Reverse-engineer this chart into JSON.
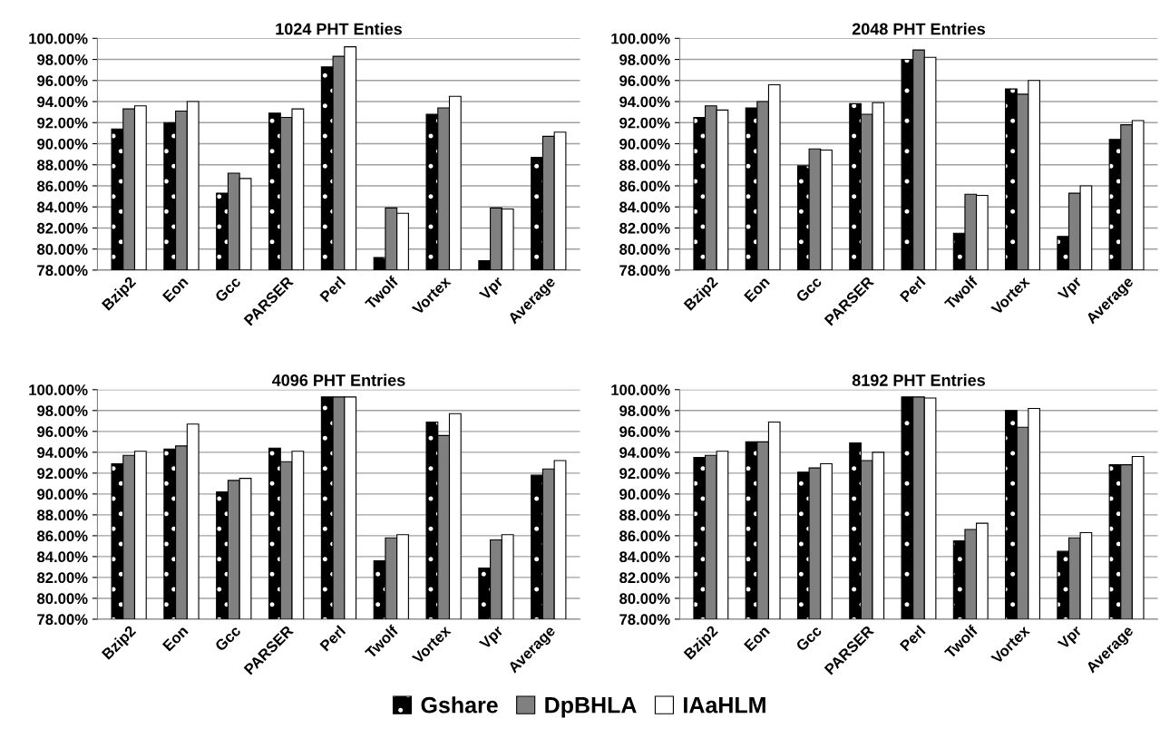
{
  "chart_data": [
    {
      "type": "bar",
      "title": "1024 PHT Enties",
      "legend": "bottom",
      "categories": [
        "Bzip2",
        "Eon",
        "Gcc",
        "PARSER",
        "Perl",
        "Twolf",
        "Vortex",
        "Vpr",
        "Average"
      ],
      "ylim": [
        78,
        100
      ],
      "yticks": [
        {
          "value": 78,
          "label": "78.00%"
        },
        {
          "value": 80,
          "label": "80.00%"
        },
        {
          "value": 82,
          "label": "82.00%"
        },
        {
          "value": 84,
          "label": "84.00%"
        },
        {
          "value": 86,
          "label": "86.00%"
        },
        {
          "value": 88,
          "label": "88.00%"
        },
        {
          "value": 90,
          "label": "90.00%"
        },
        {
          "value": 92,
          "label": "92.00%"
        },
        {
          "value": 94,
          "label": "94.00%"
        },
        {
          "value": 96,
          "label": "96.00%"
        },
        {
          "value": 98,
          "label": "98.00%"
        },
        {
          "value": 100,
          "label": "100.00%"
        }
      ],
      "grid": "y",
      "series": [
        {
          "name": "Gshare",
          "color": "#000000",
          "values": [
            91.4,
            92.0,
            85.3,
            92.9,
            97.3,
            79.2,
            92.8,
            78.9,
            88.7
          ]
        },
        {
          "name": "DpBHLA",
          "color": "#808080",
          "values": [
            93.3,
            93.1,
            87.2,
            92.5,
            98.3,
            83.9,
            93.4,
            83.9,
            90.7
          ]
        },
        {
          "name": "IAaHLM",
          "color": "#ffffff",
          "values": [
            93.6,
            94.0,
            86.7,
            93.3,
            99.2,
            83.4,
            94.5,
            83.8,
            91.1
          ]
        }
      ]
    },
    {
      "type": "bar",
      "title": "2048 PHT Entries",
      "categories": [
        "Bzip2",
        "Eon",
        "Gcc",
        "PARSER",
        "Perl",
        "Twolf",
        "Vortex",
        "Vpr",
        "Average"
      ],
      "ylim": [
        78,
        100
      ],
      "yticks": [
        {
          "value": 78,
          "label": "78.00%"
        },
        {
          "value": 80,
          "label": "80.00%"
        },
        {
          "value": 82,
          "label": "82.00%"
        },
        {
          "value": 84,
          "label": "84.00%"
        },
        {
          "value": 86,
          "label": "86.00%"
        },
        {
          "value": 88,
          "label": "88.00%"
        },
        {
          "value": 90,
          "label": "90.00%"
        },
        {
          "value": 92,
          "label": "92.00%"
        },
        {
          "value": 94,
          "label": "94.00%"
        },
        {
          "value": 96,
          "label": "96.00%"
        },
        {
          "value": 98,
          "label": "98.00%"
        },
        {
          "value": 100,
          "label": "100.00%"
        }
      ],
      "grid": "y",
      "series": [
        {
          "color": "#000000",
          "values": [
            92.5,
            93.4,
            87.9,
            93.8,
            98.0,
            81.5,
            95.2,
            81.2,
            90.4
          ]
        },
        {
          "color": "#808080",
          "values": [
            93.6,
            94.0,
            89.5,
            92.8,
            98.9,
            85.2,
            94.7,
            85.3,
            91.8
          ]
        },
        {
          "color": "#ffffff",
          "values": [
            93.2,
            95.6,
            89.4,
            93.9,
            98.2,
            85.1,
            96.0,
            86.0,
            92.2
          ]
        }
      ]
    },
    {
      "type": "bar",
      "title": "4096 PHT Entries",
      "categories": [
        "Bzip2",
        "Eon",
        "Gcc",
        "PARSER",
        "Perl",
        "Twolf",
        "Vortex",
        "Vpr",
        "Average"
      ],
      "ylim": [
        78,
        100
      ],
      "yticks": [
        {
          "value": 78,
          "label": "78.00%"
        },
        {
          "value": 80,
          "label": "80.00%"
        },
        {
          "value": 82,
          "label": "82.00%"
        },
        {
          "value": 84,
          "label": "84.00%"
        },
        {
          "value": 86,
          "label": "86.00%"
        },
        {
          "value": 88,
          "label": "88.00%"
        },
        {
          "value": 90,
          "label": "90.00%"
        },
        {
          "value": 92,
          "label": "92.00%"
        },
        {
          "value": 94,
          "label": "94.00%"
        },
        {
          "value": 96,
          "label": "96.00%"
        },
        {
          "value": 98,
          "label": "98.00%"
        },
        {
          "value": 100,
          "label": "100.00%"
        }
      ],
      "grid": "y",
      "series": [
        {
          "color": "#000000",
          "values": [
            92.9,
            94.3,
            90.2,
            94.4,
            99.3,
            83.6,
            96.9,
            82.9,
            91.8
          ]
        },
        {
          "color": "#808080",
          "values": [
            93.7,
            94.6,
            91.3,
            93.1,
            99.3,
            85.8,
            95.6,
            85.6,
            92.4
          ]
        },
        {
          "color": "#ffffff",
          "values": [
            94.1,
            96.7,
            91.5,
            94.1,
            99.3,
            86.1,
            97.7,
            86.1,
            93.2
          ]
        }
      ]
    },
    {
      "type": "bar",
      "title": "8192 PHT Entries",
      "categories": [
        "Bzip2",
        "Eon",
        "Gcc",
        "PARSER",
        "Perl",
        "Twolf",
        "Vortex",
        "Vpr",
        "Average"
      ],
      "ylim": [
        78,
        100
      ],
      "yticks": [
        {
          "value": 78,
          "label": "78.00%"
        },
        {
          "value": 80,
          "label": "80.00%"
        },
        {
          "value": 82,
          "label": "82.00%"
        },
        {
          "value": 84,
          "label": "84.00%"
        },
        {
          "value": 86,
          "label": "86.00%"
        },
        {
          "value": 88,
          "label": "88.00%"
        },
        {
          "value": 90,
          "label": "90.00%"
        },
        {
          "value": 92,
          "label": "92.00%"
        },
        {
          "value": 94,
          "label": "94.00%"
        },
        {
          "value": 96,
          "label": "96.00%"
        },
        {
          "value": 98,
          "label": "98.00%"
        },
        {
          "value": 100,
          "label": "100.00%"
        }
      ],
      "grid": "y",
      "series": [
        {
          "color": "#000000",
          "values": [
            93.5,
            95.0,
            92.1,
            94.9,
            99.3,
            85.5,
            98.0,
            84.5,
            92.8
          ]
        },
        {
          "color": "#808080",
          "values": [
            93.7,
            95.0,
            92.5,
            93.2,
            99.3,
            86.6,
            96.4,
            85.8,
            92.8
          ]
        },
        {
          "color": "#ffffff",
          "values": [
            94.1,
            96.9,
            92.9,
            94.0,
            99.2,
            87.2,
            98.2,
            86.3,
            93.6
          ]
        }
      ]
    }
  ]
}
